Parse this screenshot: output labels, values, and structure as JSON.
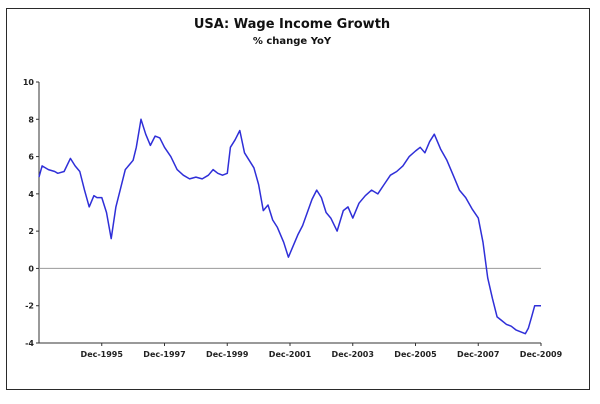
{
  "chart_data": {
    "type": "line",
    "title": "USA: Wage Income Growth",
    "subtitle": "% change YoY",
    "xlabel": "",
    "ylabel": "",
    "ylim": [
      -4,
      10
    ],
    "yticks": [
      -4,
      -2,
      0,
      2,
      4,
      6,
      8,
      10
    ],
    "xlim": [
      1994.0,
      2010.0
    ],
    "xticks": [
      {
        "x": 1996.0,
        "label": "Dec-1995"
      },
      {
        "x": 1998.0,
        "label": "Dec-1997"
      },
      {
        "x": 2000.0,
        "label": "Dec-1999"
      },
      {
        "x": 2002.0,
        "label": "Dec-2001"
      },
      {
        "x": 2004.0,
        "label": "Dec-2003"
      },
      {
        "x": 2006.0,
        "label": "Dec-2005"
      },
      {
        "x": 2008.0,
        "label": "Dec-2007"
      },
      {
        "x": 2010.0,
        "label": "Dec-2009"
      }
    ],
    "zero_line": true,
    "grid": false,
    "series": [
      {
        "color": "#2f2fd8",
        "x": [
          1994.0,
          1994.1,
          1994.3,
          1994.5,
          1994.6,
          1994.8,
          1995.0,
          1995.15,
          1995.3,
          1995.45,
          1995.6,
          1995.75,
          1995.85,
          1996.0,
          1996.15,
          1996.3,
          1996.45,
          1996.6,
          1996.75,
          1996.9,
          1997.0,
          1997.1,
          1997.25,
          1997.4,
          1997.55,
          1997.7,
          1997.85,
          1998.0,
          1998.2,
          1998.4,
          1998.6,
          1998.8,
          1999.0,
          1999.2,
          1999.4,
          1999.55,
          1999.7,
          1999.85,
          2000.0,
          2000.1,
          2000.25,
          2000.4,
          2000.55,
          2000.7,
          2000.85,
          2001.0,
          2001.15,
          2001.3,
          2001.45,
          2001.6,
          2001.8,
          2001.95,
          2002.1,
          2002.25,
          2002.4,
          2002.55,
          2002.7,
          2002.85,
          2003.0,
          2003.15,
          2003.3,
          2003.5,
          2003.7,
          2003.85,
          2004.0,
          2004.2,
          2004.4,
          2004.6,
          2004.8,
          2005.0,
          2005.2,
          2005.4,
          2005.6,
          2005.8,
          2006.0,
          2006.15,
          2006.3,
          2006.45,
          2006.6,
          2006.8,
          2007.0,
          2007.2,
          2007.4,
          2007.6,
          2007.8,
          2008.0,
          2008.15,
          2008.3,
          2008.45,
          2008.6,
          2008.75,
          2008.9,
          2009.05,
          2009.2,
          2009.35,
          2009.5,
          2009.6,
          2009.7,
          2009.8,
          2009.9,
          2010.0
        ],
        "values": [
          4.9,
          5.5,
          5.3,
          5.2,
          5.1,
          5.2,
          5.9,
          5.5,
          5.2,
          4.2,
          3.3,
          3.9,
          3.8,
          3.8,
          3.0,
          1.6,
          3.3,
          4.3,
          5.3,
          5.6,
          5.8,
          6.5,
          8.0,
          7.2,
          6.6,
          7.1,
          7.0,
          6.5,
          6.0,
          5.3,
          5.0,
          4.8,
          4.9,
          4.8,
          5.0,
          5.3,
          5.1,
          5.0,
          5.1,
          6.5,
          6.9,
          7.4,
          6.2,
          5.8,
          5.4,
          4.5,
          3.1,
          3.4,
          2.6,
          2.2,
          1.4,
          0.6,
          1.2,
          1.8,
          2.3,
          3.0,
          3.7,
          4.2,
          3.8,
          3.0,
          2.7,
          2.0,
          3.1,
          3.3,
          2.7,
          3.5,
          3.9,
          4.2,
          4.0,
          4.5,
          5.0,
          5.2,
          5.5,
          6.0,
          6.3,
          6.5,
          6.2,
          6.8,
          7.2,
          6.4,
          5.8,
          5.0,
          4.2,
          3.8,
          3.2,
          2.7,
          1.4,
          -0.5,
          -1.6,
          -2.6,
          -2.8,
          -3.0,
          -3.1,
          -3.3,
          -3.4,
          -3.5,
          -3.2,
          -2.6,
          -2.0,
          -2.0,
          -2.0
        ]
      }
    ]
  }
}
